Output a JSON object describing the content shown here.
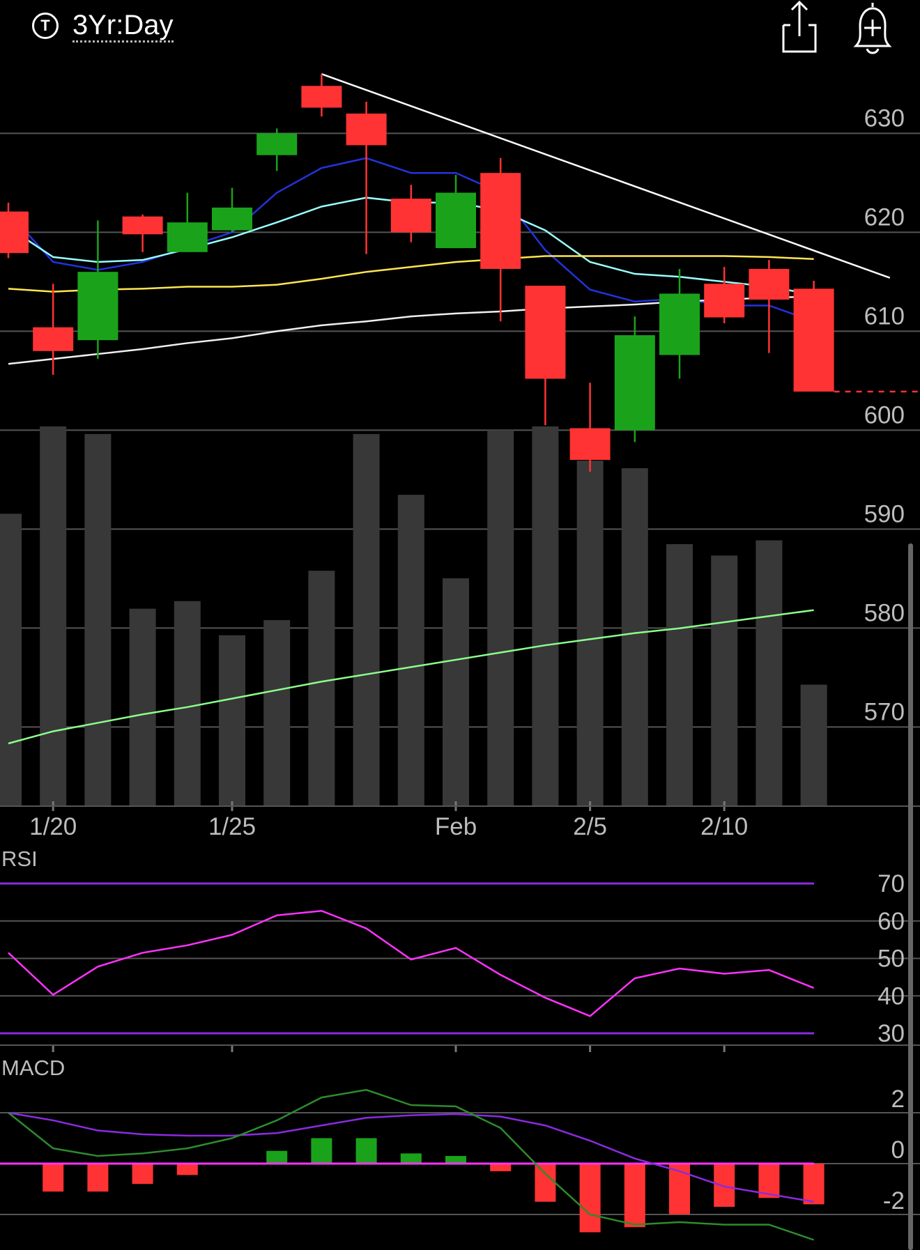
{
  "header": {
    "timeframe_icon": "T",
    "timeframe_label": "3Yr:Day",
    "share_icon": "share-icon",
    "alert_icon": "bell-plus-icon"
  },
  "colors": {
    "up": "#1aa31a",
    "down": "#ff3333",
    "volume": "#383838",
    "ma_blue": "#2233dd",
    "ma_cyan": "#99ffff",
    "ma_yellow": "#ffe650",
    "ma_white": "#f0f0f0",
    "vol_ma": "#8cff8c",
    "rsi": "#ff33ff",
    "rsi_band": "#8a2be2",
    "macd": "#2e8b2e",
    "signal": "#8a2be2",
    "zero": "#ff33ff",
    "grid": "#555555"
  },
  "chart_data": [
    {
      "type": "candlestick",
      "panel": "price",
      "ylim": [
        562,
        637
      ],
      "y_ticks": [
        630,
        620,
        610,
        600,
        590,
        580,
        570
      ],
      "x_tick_labels": [
        {
          "index": 1,
          "label": "1/20"
        },
        {
          "index": 5,
          "label": "1/25"
        },
        {
          "index": 10,
          "label": "Feb"
        },
        {
          "index": 13,
          "label": "2/5"
        },
        {
          "index": 16,
          "label": "2/10"
        }
      ],
      "last_price": 603.9,
      "candles": [
        {
          "o": 622.1,
          "h": 623.0,
          "l": 617.4,
          "c": 617.9
        },
        {
          "o": 610.4,
          "h": 614.8,
          "l": 605.6,
          "c": 608.0
        },
        {
          "o": 609.1,
          "h": 621.2,
          "l": 607.2,
          "c": 616.0
        },
        {
          "o": 621.6,
          "h": 621.8,
          "l": 618.0,
          "c": 619.8
        },
        {
          "o": 618.0,
          "h": 624.0,
          "l": 618.0,
          "c": 621.0
        },
        {
          "o": 620.2,
          "h": 624.5,
          "l": 620.0,
          "c": 622.5
        },
        {
          "o": 627.8,
          "h": 630.5,
          "l": 626.2,
          "c": 630.0
        },
        {
          "o": 634.8,
          "h": 636.0,
          "l": 631.7,
          "c": 632.6
        },
        {
          "o": 632.0,
          "h": 633.2,
          "l": 617.8,
          "c": 628.8
        },
        {
          "o": 623.4,
          "h": 624.8,
          "l": 619.0,
          "c": 620.0
        },
        {
          "o": 618.4,
          "h": 625.8,
          "l": 618.4,
          "c": 624.0
        },
        {
          "o": 626.0,
          "h": 627.5,
          "l": 611.0,
          "c": 616.3
        },
        {
          "o": 614.6,
          "h": 614.6,
          "l": 600.5,
          "c": 605.2
        },
        {
          "o": 600.2,
          "h": 604.8,
          "l": 595.8,
          "c": 597.0
        },
        {
          "o": 600.0,
          "h": 611.5,
          "l": 598.8,
          "c": 609.6
        },
        {
          "o": 607.6,
          "h": 616.3,
          "l": 605.2,
          "c": 613.8
        },
        {
          "o": 614.8,
          "h": 616.5,
          "l": 610.8,
          "c": 611.4
        },
        {
          "o": 616.3,
          "h": 617.2,
          "l": 607.8,
          "c": 613.2
        },
        {
          "o": 614.3,
          "h": 615.1,
          "l": 603.9,
          "c": 603.9
        }
      ],
      "volume_relative": [
        0.77,
        1.0,
        0.98,
        0.52,
        0.54,
        0.45,
        0.49,
        0.62,
        0.98,
        0.82,
        0.6,
        0.99,
        1.0,
        0.91,
        0.89,
        0.69,
        0.66,
        0.7,
        0.32
      ],
      "series": [
        {
          "color_key": "ma_blue",
          "values": [
            622.0,
            617.0,
            616.2,
            617.0,
            618.5,
            620.0,
            624.0,
            626.5,
            627.5,
            626.0,
            626.0,
            624.0,
            618.2,
            614.2,
            613.0,
            613.3,
            612.6,
            612.6,
            611.0
          ]
        },
        {
          "color_key": "ma_cyan",
          "values": [
            620.5,
            617.5,
            617.0,
            617.2,
            618.3,
            619.5,
            621.0,
            622.6,
            623.5,
            623.0,
            623.0,
            622.2,
            620.2,
            617.0,
            615.8,
            615.5,
            615.0,
            614.5,
            613.7
          ]
        },
        {
          "color_key": "ma_yellow",
          "values": [
            614.3,
            614.0,
            614.2,
            614.3,
            614.5,
            614.5,
            614.7,
            615.3,
            616.0,
            616.5,
            617.0,
            617.3,
            617.6,
            617.6,
            617.6,
            617.6,
            617.6,
            617.5,
            617.3
          ]
        },
        {
          "color_key": "ma_white",
          "values": [
            606.7,
            607.2,
            607.7,
            608.2,
            608.8,
            609.3,
            610.0,
            610.6,
            611.0,
            611.5,
            611.8,
            612.0,
            612.3,
            612.5,
            612.7,
            613.0,
            613.2,
            613.4,
            613.5
          ]
        }
      ],
      "volume_ma": [
        0.0,
        0.1,
        0.17,
        0.24,
        0.3,
        0.37,
        0.44,
        0.51,
        0.57,
        0.63,
        0.69,
        0.75,
        0.81,
        0.86,
        0.91,
        0.95,
        1.0,
        1.05,
        1.1
      ],
      "trendline": {
        "from": {
          "index": 7,
          "value": 636.0
        },
        "to": {
          "index": 19.7,
          "value": 615.4
        }
      }
    },
    {
      "type": "line",
      "panel": "rsi",
      "title": "RSI",
      "ylim": [
        26,
        74
      ],
      "y_ticks": [
        70,
        60,
        50,
        40,
        30
      ],
      "bands": [
        70,
        30
      ],
      "values": [
        51.5,
        40.3,
        47.8,
        51.5,
        53.5,
        56.3,
        61.5,
        62.7,
        58.0,
        49.7,
        52.8,
        45.6,
        39.5,
        34.6,
        44.7,
        47.3,
        45.9,
        46.9,
        42.1
      ]
    },
    {
      "type": "bar",
      "panel": "macd",
      "title": "MACD",
      "ylim": [
        -3.2,
        3.0
      ],
      "y_ticks": [
        2,
        0,
        -2
      ],
      "macd": [
        2.0,
        0.6,
        0.3,
        0.4,
        0.6,
        1.0,
        1.7,
        2.6,
        2.9,
        2.3,
        2.25,
        1.4,
        -0.4,
        -2.0,
        -2.4,
        -2.3,
        -2.4,
        -2.4,
        -3.0
      ],
      "signal": [
        2.0,
        1.7,
        1.3,
        1.15,
        1.1,
        1.1,
        1.2,
        1.5,
        1.8,
        1.9,
        1.95,
        1.85,
        1.5,
        0.9,
        0.2,
        -0.3,
        -0.9,
        -1.2,
        -1.5
      ],
      "histogram": [
        0,
        -1.1,
        -1.1,
        -0.8,
        -0.45,
        0,
        0.5,
        1.0,
        1.0,
        0.4,
        0.3,
        -0.3,
        -1.5,
        -2.7,
        -2.5,
        -2.0,
        -1.7,
        -1.35,
        -1.6
      ]
    }
  ]
}
